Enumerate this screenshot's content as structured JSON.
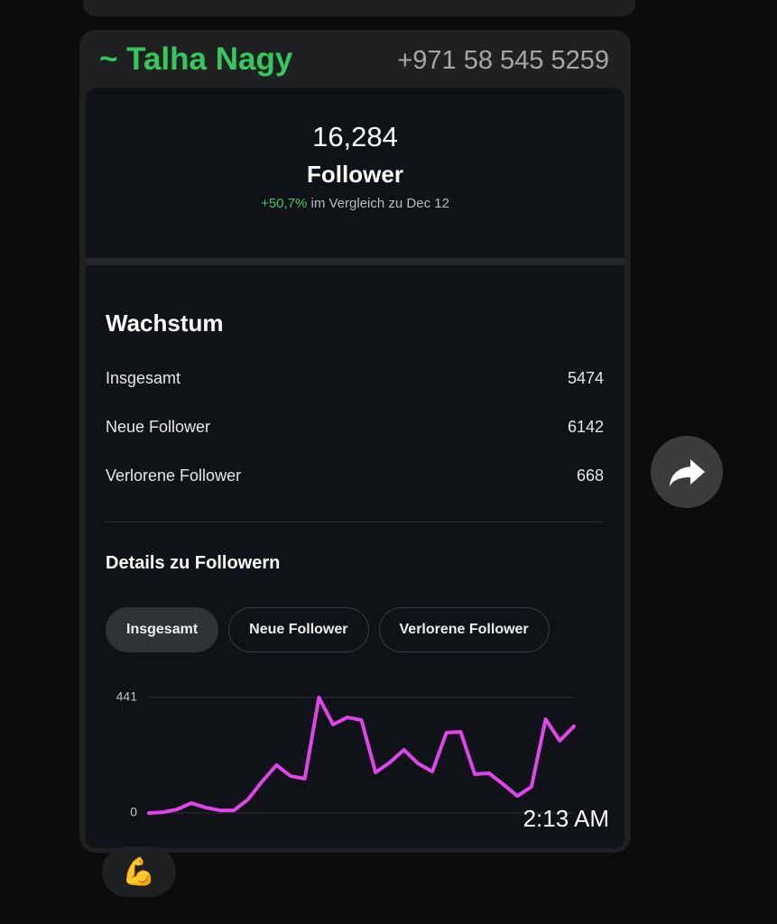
{
  "sender": {
    "name": "~ Talha Nagy",
    "phone": "+971 58 545 5259"
  },
  "summary": {
    "count": "16,284",
    "label": "Follower",
    "change": "+50,7%",
    "comparison": "im Vergleich zu Dec 12"
  },
  "growth": {
    "title": "Wachstum",
    "rows": [
      {
        "label": "Insgesamt",
        "value": 5474
      },
      {
        "label": "Neue Follower",
        "value": 6142
      },
      {
        "label": "Verlorene Follower",
        "value": 668
      }
    ]
  },
  "details": {
    "title": "Details zu Followern",
    "tabs": [
      "Insgesamt",
      "Neue Follower",
      "Verlorene Follower"
    ],
    "selected_tab": 0
  },
  "chart_data": {
    "type": "line",
    "ylim": [
      0,
      441
    ],
    "yticks": [
      0,
      441
    ],
    "grid": true,
    "series": [
      {
        "color": "#e244ec",
        "values": [
          0,
          3,
          14,
          38,
          21,
          10,
          10,
          52,
          121,
          183,
          141,
          131,
          441,
          338,
          365,
          355,
          155,
          193,
          241,
          189,
          158,
          307,
          310,
          148,
          152,
          110,
          65,
          100,
          358,
          276,
          331
        ]
      }
    ]
  },
  "timestamp": "2:13 AM",
  "reaction": "💪"
}
